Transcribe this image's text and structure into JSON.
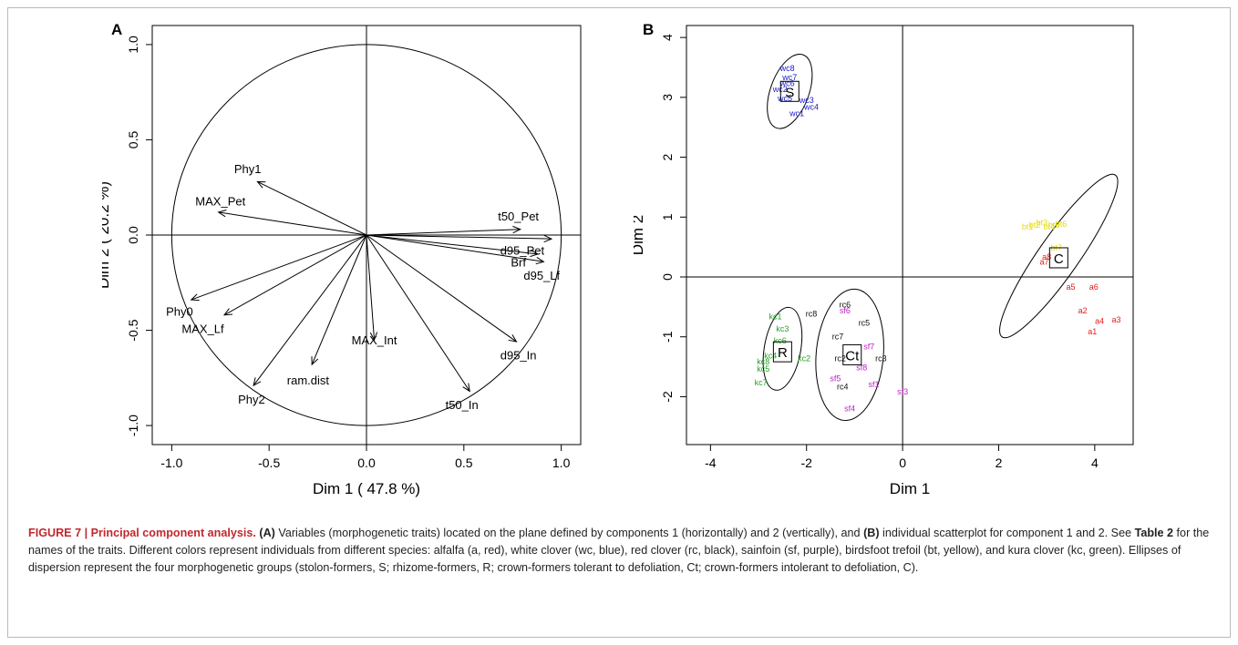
{
  "figure": {
    "caption": {
      "label": "FIGURE 7 |",
      "title": "Principal component analysis.",
      "part_a_ref": "(A)",
      "part_a_text": " Variables (morphogenetic traits) located on the plane defined by components 1 (horizontally) and 2 (vertically), and",
      "part_b_ref": "(B)",
      "part_b_text": " individual scatterplot for component 1 and 2. See ",
      "table_ref": "Table 2",
      "rest_text": " for the names of the traits. Different colors represent individuals from different species: alfalfa (a, red), white clover (wc, blue), red clover (rc, black), sainfoin (sf, purple), birdsfoot trefoil (bt, yellow), and kura clover (kc, green). Ellipses of dispersion represent the four morphogenetic groups (stolon-formers, S; rhizome-formers, R; crown-formers tolerant to defoliation, Ct; crown-formers intolerant to defoliation, C)."
    }
  },
  "chart_data": [
    {
      "type": "scatter",
      "panel_label": "A",
      "xlabel": "Dim 1 ( 47.8 %)",
      "ylabel": "Dim 2 ( 20.2 %)",
      "xlim": [
        -1.1,
        1.1
      ],
      "ylim": [
        -1.1,
        1.1
      ],
      "xticks": [
        -1.0,
        -0.5,
        0.0,
        0.5,
        1.0
      ],
      "yticks": [
        -1.0,
        -0.5,
        0.0,
        0.5,
        1.0
      ],
      "xtick_labels": [
        "-1.0",
        "-0.5",
        "0.0",
        "0.5",
        "1.0"
      ],
      "ytick_labels": [
        "-1.0",
        "-0.5",
        "0.0",
        "0.5",
        "1.0"
      ],
      "unit_circle": true,
      "vectors": [
        {
          "label": "Phy1",
          "x": -0.56,
          "y": 0.28,
          "lx": -0.61,
          "ly": 0.35
        },
        {
          "label": "MAX_Pet",
          "x": -0.76,
          "y": 0.12,
          "lx": -0.75,
          "ly": 0.18
        },
        {
          "label": "t50_Pet",
          "x": 0.79,
          "y": 0.03,
          "lx": 0.78,
          "ly": 0.1
        },
        {
          "label": "d95_Pet",
          "x": 0.95,
          "y": -0.02,
          "lx": 0.8,
          "ly": -0.08
        },
        {
          "label": "Brf",
          "x": 0.88,
          "y": -0.1,
          "lx": 0.78,
          "ly": -0.14
        },
        {
          "label": "d95_Lf",
          "x": 0.91,
          "y": -0.14,
          "lx": 0.9,
          "ly": -0.21
        },
        {
          "label": "Phy0",
          "x": -0.9,
          "y": -0.34,
          "lx": -0.96,
          "ly": -0.4
        },
        {
          "label": "MAX_Lf",
          "x": -0.73,
          "y": -0.42,
          "lx": -0.84,
          "ly": -0.49
        },
        {
          "label": "Phy2",
          "x": -0.58,
          "y": -0.79,
          "lx": -0.59,
          "ly": -0.86
        },
        {
          "label": "ram.dist",
          "x": -0.28,
          "y": -0.68,
          "lx": -0.3,
          "ly": -0.76
        },
        {
          "label": "MAX_Int",
          "x": 0.04,
          "y": -0.55,
          "lx": 0.04,
          "ly": -0.55
        },
        {
          "label": "d95_In",
          "x": 0.77,
          "y": -0.56,
          "lx": 0.78,
          "ly": -0.63
        },
        {
          "label": "t50_In",
          "x": 0.53,
          "y": -0.82,
          "lx": 0.49,
          "ly": -0.89
        }
      ]
    },
    {
      "type": "scatter",
      "panel_label": "B",
      "xlabel": "Dim 1",
      "ylabel": "Dim 2",
      "xlim": [
        -4.5,
        4.8
      ],
      "ylim": [
        -2.8,
        4.2
      ],
      "xticks": [
        -4,
        -2,
        0,
        2,
        4
      ],
      "yticks": [
        -2,
        -1,
        0,
        1,
        2,
        3,
        4
      ],
      "xtick_labels": [
        "-4",
        "-2",
        "0",
        "2",
        "4"
      ],
      "ytick_labels": [
        "-2",
        "-1",
        "0",
        "1",
        "2",
        "3",
        "4"
      ],
      "groups": [
        {
          "name": "S",
          "cx": -2.35,
          "cy": 3.1,
          "rx": 0.4,
          "ry": 0.65,
          "angle": 20,
          "label_x": -2.35,
          "label_y": 3.1
        },
        {
          "name": "R",
          "cx": -2.5,
          "cy": -1.2,
          "rx": 0.38,
          "ry": 0.7,
          "angle": 10,
          "label_x": -2.5,
          "label_y": -1.25
        },
        {
          "name": "Ct",
          "cx": -1.1,
          "cy": -1.3,
          "rx": 0.7,
          "ry": 1.1,
          "angle": 5,
          "label_x": -1.05,
          "label_y": -1.3
        },
        {
          "name": "C",
          "cx": 3.25,
          "cy": 0.35,
          "rx": 0.42,
          "ry": 1.65,
          "angle": 35,
          "label_x": 3.25,
          "label_y": 0.32
        }
      ],
      "series": [
        {
          "name": "a",
          "color": "#e01b1b",
          "points": [
            {
              "label": "a1",
              "x": 3.95,
              "y": -0.9
            },
            {
              "label": "a2",
              "x": 3.75,
              "y": -0.55
            },
            {
              "label": "a3",
              "x": 4.45,
              "y": -0.7
            },
            {
              "label": "a4",
              "x": 4.1,
              "y": -0.72
            },
            {
              "label": "a5",
              "x": 3.5,
              "y": -0.15
            },
            {
              "label": "a6",
              "x": 3.98,
              "y": -0.15
            },
            {
              "label": "a7",
              "x": 2.95,
              "y": 0.27
            },
            {
              "label": "a8",
              "x": 3.0,
              "y": 0.35
            }
          ]
        },
        {
          "name": "wc",
          "color": "#1a1acc",
          "points": [
            {
              "label": "wc1",
              "x": -2.2,
              "y": 2.75
            },
            {
              "label": "wc4",
              "x": -1.9,
              "y": 2.85
            },
            {
              "label": "wc3",
              "x": -2.0,
              "y": 2.97
            },
            {
              "label": "wc5",
              "x": -2.45,
              "y": 3.0
            },
            {
              "label": "wc2",
              "x": -2.55,
              "y": 3.15
            },
            {
              "label": "wc6",
              "x": -2.4,
              "y": 3.25
            },
            {
              "label": "wc7",
              "x": -2.35,
              "y": 3.35
            },
            {
              "label": "wc8",
              "x": -2.4,
              "y": 3.5
            }
          ]
        },
        {
          "name": "rc",
          "color": "#111111",
          "points": [
            {
              "label": "rc8",
              "x": -1.9,
              "y": -0.6
            },
            {
              "label": "rc6",
              "x": -1.2,
              "y": -0.45
            },
            {
              "label": "rc5",
              "x": -0.8,
              "y": -0.75
            },
            {
              "label": "rc7",
              "x": -1.35,
              "y": -0.98
            },
            {
              "label": "rc2",
              "x": -1.3,
              "y": -1.35
            },
            {
              "label": "rc3",
              "x": -0.45,
              "y": -1.35
            },
            {
              "label": "rc4",
              "x": -1.25,
              "y": -1.82
            }
          ]
        },
        {
          "name": "sf",
          "color": "#c020c8",
          "points": [
            {
              "label": "sf6",
              "x": -1.2,
              "y": -0.55
            },
            {
              "label": "sf7",
              "x": -0.7,
              "y": -1.15
            },
            {
              "label": "sf8",
              "x": -0.85,
              "y": -1.5
            },
            {
              "label": "sf5",
              "x": -1.4,
              "y": -1.68
            },
            {
              "label": "sf1",
              "x": -0.6,
              "y": -1.78
            },
            {
              "label": "sf3",
              "x": 0.0,
              "y": -1.9
            },
            {
              "label": "sf4",
              "x": -1.1,
              "y": -2.18
            }
          ]
        },
        {
          "name": "bt",
          "color": "#e3dc10",
          "points": [
            {
              "label": "bt1",
              "x": 2.6,
              "y": 0.85
            },
            {
              "label": "bt2",
              "x": 2.75,
              "y": 0.88
            },
            {
              "label": "bt3",
              "x": 2.9,
              "y": 0.92
            },
            {
              "label": "bt4",
              "x": 3.05,
              "y": 0.85
            },
            {
              "label": "bt5",
              "x": 3.15,
              "y": 0.88
            },
            {
              "label": "bt6",
              "x": 3.3,
              "y": 0.9
            },
            {
              "label": "bt7",
              "x": 3.2,
              "y": 0.5
            }
          ]
        },
        {
          "name": "kc",
          "color": "#22a522",
          "points": [
            {
              "label": "kc1",
              "x": -2.65,
              "y": -0.65
            },
            {
              "label": "kc3",
              "x": -2.5,
              "y": -0.85
            },
            {
              "label": "kc6",
              "x": -2.55,
              "y": -1.05
            },
            {
              "label": "kc2",
              "x": -2.05,
              "y": -1.35
            },
            {
              "label": "kc4",
              "x": -2.75,
              "y": -1.3
            },
            {
              "label": "kc8",
              "x": -2.9,
              "y": -1.4
            },
            {
              "label": "kc5",
              "x": -2.9,
              "y": -1.52
            },
            {
              "label": "kc7",
              "x": -2.95,
              "y": -1.75
            }
          ]
        }
      ]
    }
  ]
}
